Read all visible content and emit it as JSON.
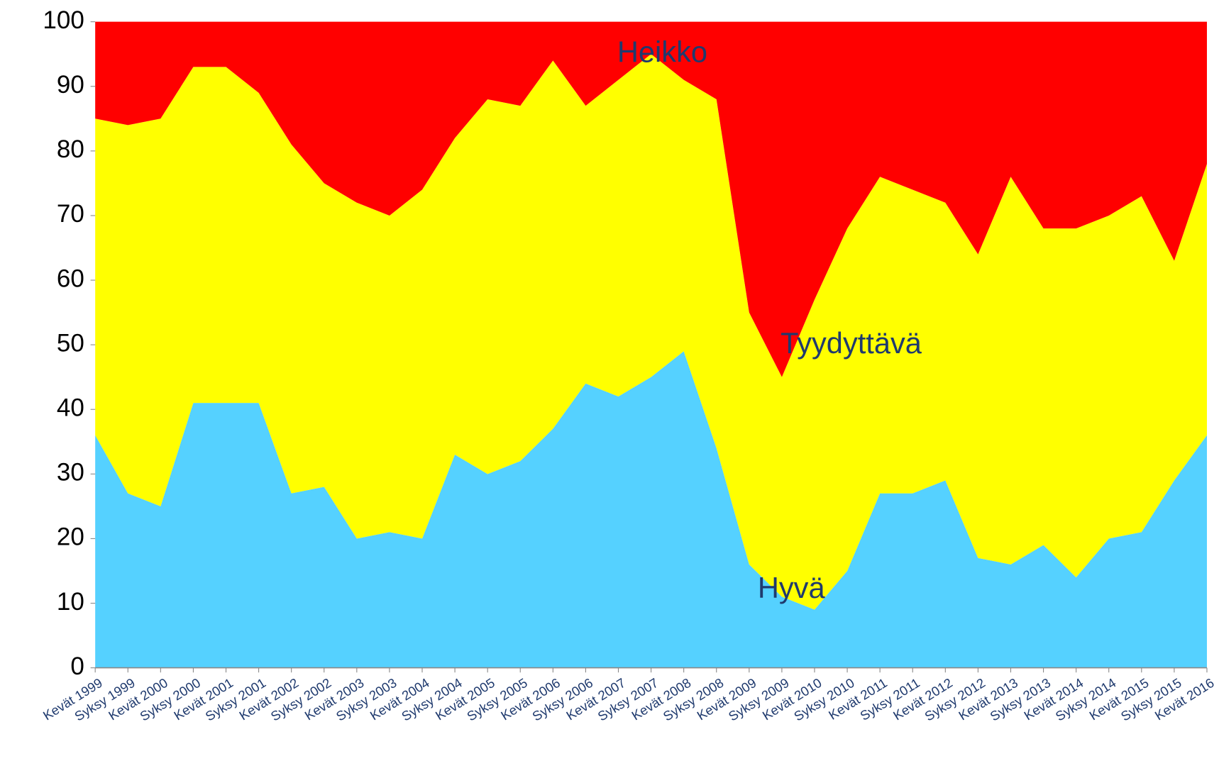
{
  "chart_data": {
    "type": "stacked_area",
    "categories": [
      "Kevät 1999",
      "Syksy 1999",
      "Kevät 2000",
      "Syksy 2000",
      "Kevät 2001",
      "Syksy 2001",
      "Kevät 2002",
      "Syksy 2002",
      "Kevät 2003",
      "Syksy 2003",
      "Kevät 2004",
      "Syksy 2004",
      "Kevät 2005",
      "Syksy 2005",
      "Kevät 2006",
      "Syksy 2006",
      "Kevät 2007",
      "Syksy 2007",
      "Kevät 2008",
      "Syksy 2008",
      "Kevät 2009",
      "Syksy 2009",
      "Kevät 2010",
      "Syksy 2010",
      "Kevät 2011",
      "Syksy 2011",
      "Kevät 2012",
      "Syksy 2012",
      "Kevät 2013",
      "Syksy 2013",
      "Kevät 2014",
      "Syksy 2014",
      "Kevät 2015",
      "Syksy 2015",
      "Kevät 2016"
    ],
    "series": [
      {
        "name": "Hyvä",
        "color": "#55d1ff",
        "values": [
          36,
          27,
          25,
          41,
          41,
          41,
          27,
          28,
          20,
          21,
          20,
          33,
          30,
          32,
          37,
          44,
          42,
          45,
          49,
          34,
          16,
          11,
          9,
          15,
          27,
          27,
          29,
          17,
          16,
          19,
          14,
          20,
          21,
          29,
          36
        ]
      },
      {
        "name": "Tyydyttävä",
        "color": "#ffff00",
        "values": [
          49,
          57,
          60,
          52,
          52,
          48,
          54,
          47,
          52,
          49,
          54,
          49,
          58,
          55,
          57,
          43,
          49,
          50,
          42,
          54,
          39,
          34,
          48,
          53,
          49,
          47,
          43,
          47,
          60,
          49,
          54,
          50,
          52,
          34,
          42
        ]
      },
      {
        "name": "Heikko",
        "color": "#ff0000",
        "values": [
          15,
          16,
          15,
          7,
          7,
          11,
          19,
          25,
          28,
          30,
          26,
          18,
          12,
          13,
          6,
          13,
          9,
          5,
          9,
          12,
          45,
          55,
          43,
          32,
          24,
          26,
          28,
          36,
          24,
          32,
          32,
          30,
          27,
          37,
          22
        ]
      }
    ],
    "ylim": [
      0,
      100
    ],
    "yticks": [
      0,
      10,
      20,
      30,
      40,
      50,
      60,
      70,
      80,
      90,
      100
    ]
  }
}
